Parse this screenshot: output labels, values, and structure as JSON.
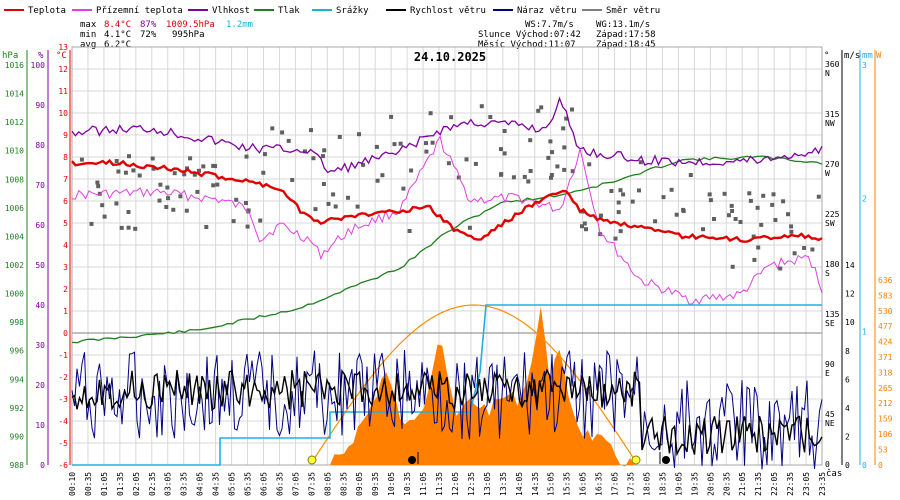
{
  "chart_data": {
    "type": "line",
    "title": "24.10.2025",
    "legend": [
      {
        "label": "Teplota",
        "color": "#e00000"
      },
      {
        "label": "Přízemní teplota",
        "color": "#e040e0"
      },
      {
        "label": "Vlhkost",
        "color": "#8000a0"
      },
      {
        "label": "Tlak",
        "color": "#208020"
      },
      {
        "label": "Srážky",
        "color": "#20b0e0"
      },
      {
        "label": "Rychlost větru",
        "color": "#000000"
      },
      {
        "label": "Náraz větru",
        "color": "#000080"
      },
      {
        "label": "Směr větru",
        "color": "#808080"
      }
    ],
    "stats": {
      "max_label": "max",
      "max_temp": "8.4°C",
      "max_hum": "87%",
      "max_press": "1009.5hPa",
      "max_rain": "1.2mm",
      "min_label": "min",
      "min_temp": "4.1°C",
      "min_hum": "72%",
      "min_press": "995hPa",
      "avg_label": "avg",
      "avg_temp": "6.2°C"
    },
    "info": {
      "ws": "WS:7.7m/s",
      "wg": "WG:13.1m/s",
      "sun": "Slunce Východ:07:42",
      "sun_set": "Západ:17:58",
      "moon": "Měsíc  Východ:11:07",
      "moon_set": "Západ:18:45"
    },
    "xlabel": "čas",
    "x_ticks": [
      "00:10",
      "00:35",
      "01:05",
      "01:35",
      "02:05",
      "02:35",
      "03:05",
      "03:35",
      "04:05",
      "04:35",
      "05:05",
      "05:35",
      "06:05",
      "06:35",
      "07:05",
      "07:35",
      "08:05",
      "08:35",
      "09:05",
      "09:35",
      "10:05",
      "10:35",
      "11:05",
      "11:35",
      "12:05",
      "12:35",
      "13:05",
      "13:35",
      "14:05",
      "14:35",
      "15:05",
      "15:35",
      "16:05",
      "16:35",
      "17:05",
      "17:35",
      "18:05",
      "18:35",
      "19:05",
      "19:35",
      "20:05",
      "20:35",
      "21:05",
      "21:35",
      "22:05",
      "22:35",
      "23:05",
      "23:35"
    ],
    "axes": {
      "hpa": {
        "label": "hPa",
        "range": [
          988,
          1016
        ],
        "ticks": [
          "1016",
          "1014",
          "1012",
          "1010",
          "1008",
          "1006",
          "1004",
          "1002",
          "1000",
          "998",
          "996",
          "994",
          "992",
          "990",
          "988"
        ]
      },
      "pct": {
        "label": "%",
        "range": [
          0,
          100
        ],
        "ticks": [
          "100",
          "90",
          "80",
          "70",
          "60",
          "50",
          "40",
          "30",
          "20",
          "10",
          "0"
        ]
      },
      "temp": {
        "label": "°C",
        "range": [
          -6,
          13
        ],
        "ticks": [
          "13",
          "12",
          "11",
          "10",
          "9",
          "8",
          "7",
          "6",
          "5",
          "4",
          "3",
          "2",
          "1",
          "0",
          "-1",
          "-2",
          "-3",
          "-4",
          "-5",
          "-6"
        ]
      },
      "dir": {
        "label": "°",
        "ticks": [
          {
            "deg": "360",
            "name": "N"
          },
          {
            "deg": "315",
            "name": "NW"
          },
          {
            "deg": "270",
            "name": "W"
          },
          {
            "deg": "225",
            "name": "SW"
          },
          {
            "deg": "180",
            "name": "S"
          },
          {
            "deg": "135",
            "name": "SE"
          },
          {
            "deg": "90",
            "name": "E"
          },
          {
            "deg": "45",
            "name": "NE"
          },
          {
            "deg": "0",
            "name": ""
          }
        ]
      },
      "ms": {
        "label": "m/s",
        "range": [
          0,
          14
        ],
        "ticks": [
          "14",
          "12",
          "10",
          "8",
          "6",
          "4",
          "2",
          "0"
        ]
      },
      "mm": {
        "label": "mm",
        "range": [
          0,
          3
        ],
        "ticks": [
          "3",
          "2",
          "1",
          "0"
        ]
      },
      "w": {
        "label": "W",
        "range": [
          0,
          636
        ],
        "ticks": [
          "636",
          "583",
          "530",
          "477",
          "424",
          "371",
          "318",
          "265",
          "212",
          "159",
          "106",
          "53",
          "0"
        ]
      }
    },
    "colors": {
      "temp": "#e00000",
      "ground": "#e040e0",
      "hum": "#8000a0",
      "press": "#208020",
      "rain": "#20b0e0",
      "wind": "#000000",
      "gust": "#000080",
      "dir": "#606060",
      "solar": "#ff8000",
      "clear": "#ff8c00"
    }
  }
}
